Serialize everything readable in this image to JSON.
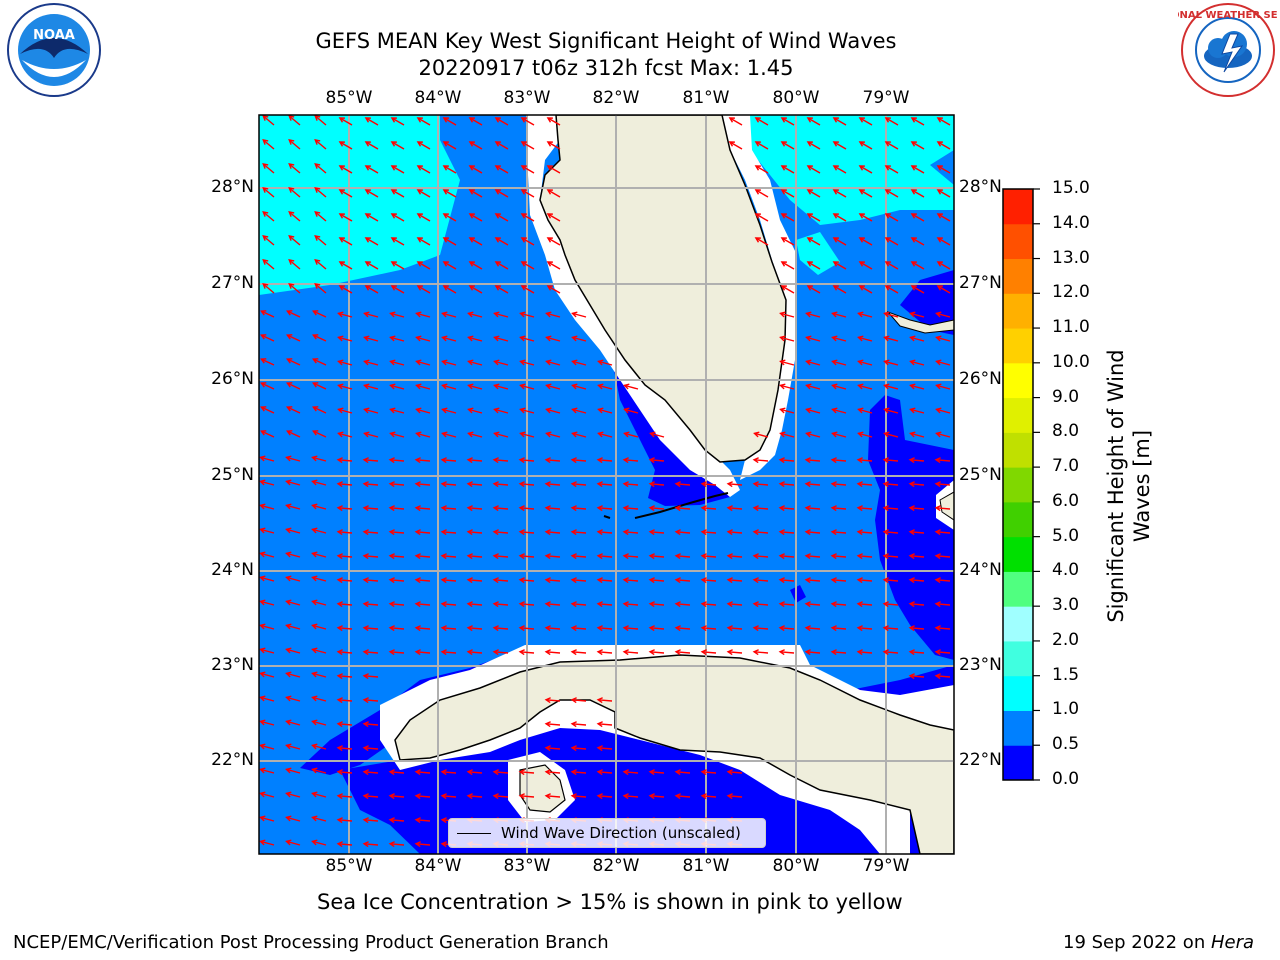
{
  "title": {
    "line1": "GEFS MEAN Key West Significant Height of Wind Waves",
    "line2": "20220917 t06z 312h fcst   Max: 1.45"
  },
  "map": {
    "lon_labels": [
      "85°W",
      "84°W",
      "83°W",
      "82°W",
      "81°W",
      "80°W",
      "79°W"
    ],
    "lat_labels": [
      "28°N",
      "27°N",
      "26°N",
      "25°N",
      "24°N",
      "23°N",
      "22°N"
    ],
    "legend_label": "Wind Wave Direction (unscaled)",
    "arrow_color": "#ff0000",
    "land_color": "#efeedc"
  },
  "colorbar": {
    "label": "Significant Height of Wind Waves [m]",
    "ticks": [
      "0.0",
      "0.5",
      "1.0",
      "1.5",
      "2.0",
      "3.0",
      "4.0",
      "5.0",
      "6.0",
      "7.0",
      "8.0",
      "9.0",
      "10.0",
      "11.0",
      "12.0",
      "13.0",
      "14.0",
      "15.0"
    ],
    "colors": [
      "#0000ff",
      "#0080ff",
      "#00ffff",
      "#40ffe0",
      "#a0ffff",
      "#50ff80",
      "#00e000",
      "#40d000",
      "#80d800",
      "#c0e000",
      "#e0f000",
      "#ffff00",
      "#ffd000",
      "#ffb000",
      "#ff8000",
      "#ff5000",
      "#ff2000",
      "#ff0000"
    ]
  },
  "notes": {
    "sea_ice": "Sea Ice Concentration > 15% is shown in pink to yellow",
    "credit": "NCEP/EMC/Verification Post Processing Product Generation Branch",
    "date_prefix": "19 Sep 2022 on ",
    "date_machine": "Hera"
  },
  "logos": {
    "noaa_text": "NOAA",
    "nws_text": "NATIONAL WEATHER SERVICE"
  }
}
